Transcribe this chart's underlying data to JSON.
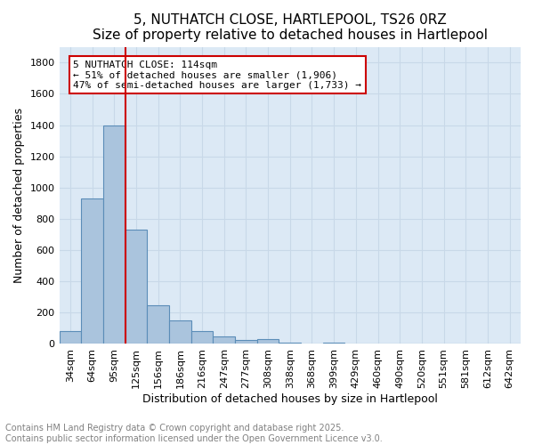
{
  "title": "5, NUTHATCH CLOSE, HARTLEPOOL, TS26 0RZ",
  "subtitle": "Size of property relative to detached houses in Hartlepool",
  "xlabel": "Distribution of detached houses by size in Hartlepool",
  "ylabel": "Number of detached properties",
  "bar_values": [
    85,
    930,
    1400,
    730,
    245,
    150,
    85,
    50,
    25,
    30,
    10,
    0,
    10,
    0,
    0,
    0,
    0,
    0,
    0,
    0,
    0
  ],
  "categories": [
    "34sqm",
    "64sqm",
    "95sqm",
    "125sqm",
    "156sqm",
    "186sqm",
    "216sqm",
    "247sqm",
    "277sqm",
    "308sqm",
    "338sqm",
    "368sqm",
    "399sqm",
    "429sqm",
    "460sqm",
    "490sqm",
    "520sqm",
    "551sqm",
    "581sqm",
    "612sqm",
    "642sqm"
  ],
  "bar_color": "#aac4dd",
  "bar_edge_color": "#5b8db8",
  "grid_color": "#c8d8e8",
  "background_color": "#dce9f5",
  "vline_x_index": 2,
  "vline_color": "#cc0000",
  "annotation_text": "5 NUTHATCH CLOSE: 114sqm\n← 51% of detached houses are smaller (1,906)\n47% of semi-detached houses are larger (1,733) →",
  "annotation_box_color": "#cc0000",
  "ylim": [
    0,
    1900
  ],
  "yticks": [
    0,
    200,
    400,
    600,
    800,
    1000,
    1200,
    1400,
    1600,
    1800
  ],
  "footer_text": "Contains HM Land Registry data © Crown copyright and database right 2025.\nContains public sector information licensed under the Open Government Licence v3.0.",
  "title_fontsize": 11,
  "subtitle_fontsize": 10,
  "axis_label_fontsize": 9,
  "tick_fontsize": 8,
  "annotation_fontsize": 8,
  "footer_fontsize": 7
}
